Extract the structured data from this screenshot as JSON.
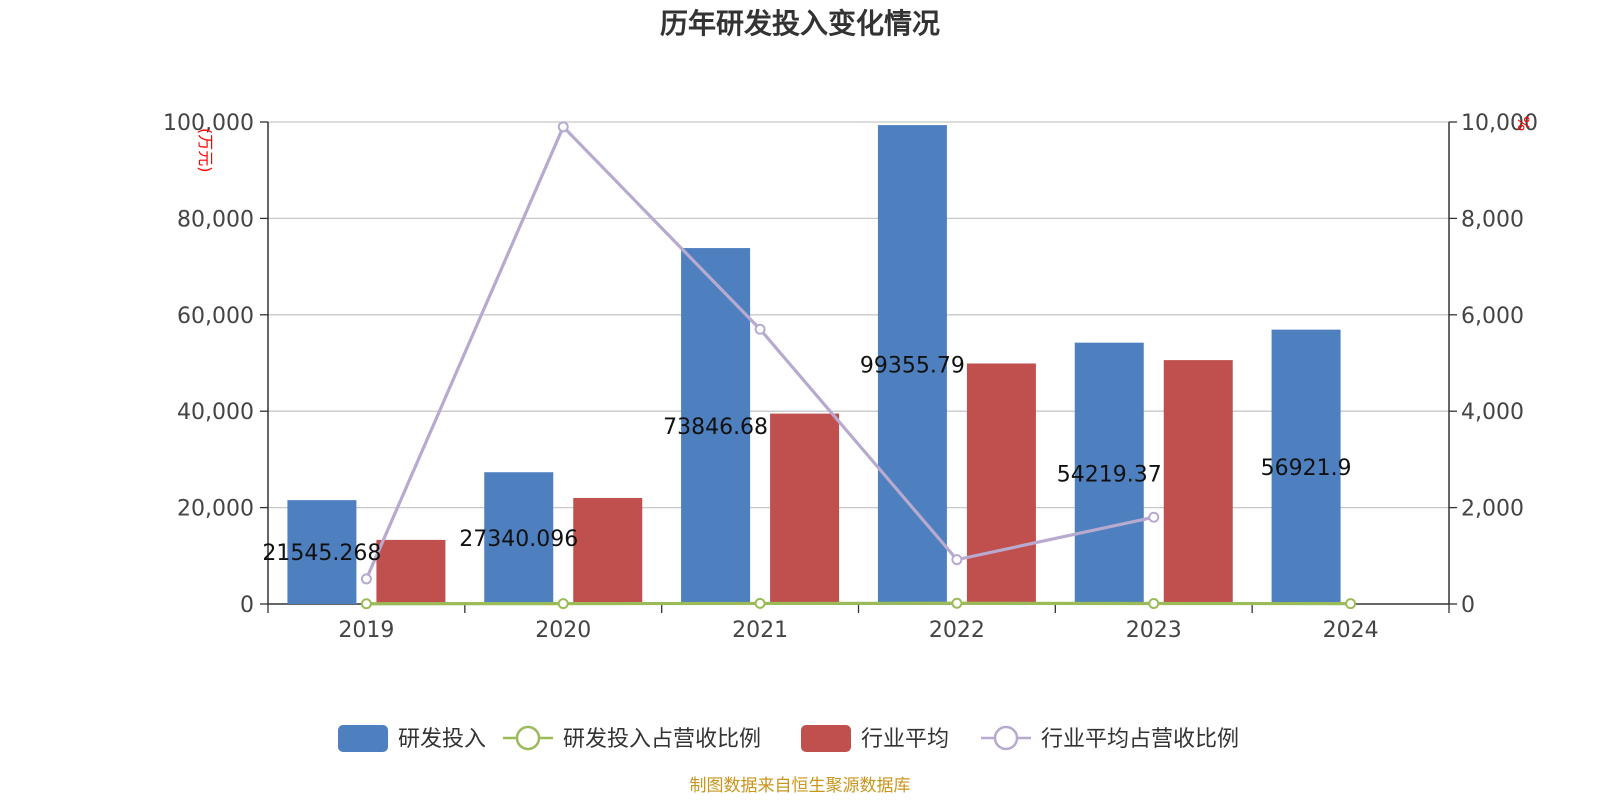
{
  "chart_data": {
    "type": "bar",
    "title": "历年研发投入变化情况",
    "categories": [
      "2019",
      "2020",
      "2021",
      "2022",
      "2023",
      "2024"
    ],
    "y_left": {
      "unit": "(万元)",
      "min": 0,
      "max": 100000,
      "ticks": [
        "0",
        "20,000",
        "40,000",
        "60,000",
        "80,000",
        "100,000"
      ]
    },
    "y_right": {
      "unit": "%",
      "min": 0,
      "max": 10000,
      "ticks": [
        "0",
        "2,000",
        "4,000",
        "6,000",
        "8,000",
        "10,000"
      ]
    },
    "series": [
      {
        "name": "研发投入",
        "kind": "bar",
        "axis": "left",
        "color": "#4e80c0",
        "values": [
          21545.268,
          27340.096,
          73846.68,
          99355.79,
          54219.37,
          56921.9
        ],
        "labels": [
          "21545.268",
          "27340.096",
          "73846.68",
          "99355.79",
          "54219.37",
          "56921.9"
        ]
      },
      {
        "name": "研发投入占营收比例",
        "kind": "line",
        "axis": "right",
        "color": "#9bbb59",
        "values": [
          5,
          8,
          12,
          15,
          10,
          8
        ]
      },
      {
        "name": "行业平均",
        "kind": "bar",
        "axis": "left",
        "color": "#c0504d",
        "values": [
          13300,
          22000,
          39500,
          49900,
          50600,
          null
        ]
      },
      {
        "name": "行业平均占营收比例",
        "kind": "line",
        "axis": "right",
        "color": "#b8a9cf",
        "values": [
          520,
          9900,
          5700,
          920,
          1800,
          null
        ]
      }
    ],
    "grid": true,
    "legend": "bottom"
  },
  "source": "制图数据来自恒生聚源数据库"
}
